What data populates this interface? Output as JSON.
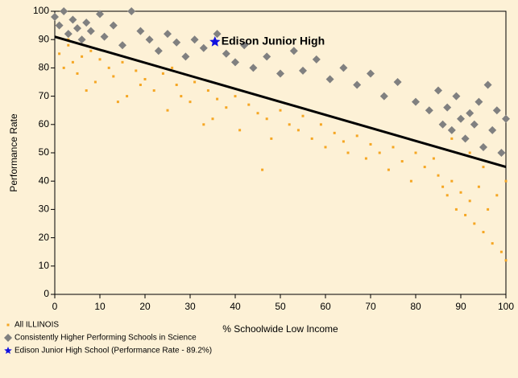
{
  "chart_data": {
    "type": "scatter",
    "xlabel": "% Schoolwide Low Income",
    "ylabel": "Performance Rate",
    "xlim": [
      0,
      100
    ],
    "ylim": [
      0,
      100
    ],
    "xticks": [
      0,
      10,
      20,
      30,
      40,
      50,
      60,
      70,
      80,
      90,
      100
    ],
    "yticks": [
      0,
      10,
      20,
      30,
      40,
      50,
      60,
      70,
      80,
      90,
      100
    ],
    "series": [
      {
        "name": "All ILLINOIS",
        "color": "#f5a623",
        "marker": "square",
        "x": [
          1,
          2,
          3,
          4,
          5,
          6,
          8,
          9,
          10,
          12,
          13,
          15,
          16,
          18,
          19,
          20,
          22,
          24,
          25,
          27,
          28,
          30,
          31,
          33,
          34,
          36,
          38,
          40,
          41,
          43,
          45,
          47,
          48,
          50,
          52,
          54,
          55,
          57,
          59,
          60,
          62,
          64,
          65,
          67,
          69,
          70,
          72,
          74,
          75,
          77,
          79,
          80,
          82,
          84,
          85,
          86,
          87,
          88,
          89,
          90,
          91,
          92,
          93,
          94,
          95,
          96,
          97,
          98,
          99,
          100,
          100,
          95,
          92,
          88,
          3,
          7,
          14,
          26,
          35,
          46
        ],
        "values": [
          85,
          80,
          88,
          82,
          78,
          84,
          86,
          75,
          83,
          80,
          77,
          82,
          70,
          79,
          74,
          76,
          72,
          78,
          65,
          74,
          70,
          68,
          75,
          60,
          72,
          69,
          66,
          70,
          58,
          67,
          64,
          62,
          55,
          65,
          60,
          58,
          63,
          55,
          60,
          52,
          57,
          54,
          50,
          56,
          48,
          53,
          50,
          44,
          52,
          47,
          40,
          50,
          45,
          48,
          42,
          38,
          35,
          40,
          30,
          36,
          28,
          33,
          25,
          38,
          22,
          30,
          18,
          35,
          15,
          40,
          12,
          45,
          50,
          55,
          90,
          72,
          68,
          80,
          62,
          44
        ]
      },
      {
        "name": "Consistently Higher Performing Schools in Science",
        "color": "#808080",
        "marker": "diamond",
        "x": [
          0,
          1,
          2,
          3,
          4,
          5,
          6,
          7,
          8,
          10,
          11,
          13,
          15,
          17,
          19,
          21,
          23,
          25,
          27,
          29,
          31,
          33,
          36,
          38,
          40,
          42,
          44,
          47,
          50,
          53,
          55,
          58,
          61,
          64,
          67,
          70,
          73,
          76,
          80,
          83,
          85,
          86,
          87,
          88,
          89,
          90,
          91,
          92,
          93,
          94,
          95,
          96,
          97,
          98,
          99,
          100
        ],
        "values": [
          98,
          95,
          100,
          92,
          97,
          94,
          90,
          96,
          93,
          99,
          91,
          95,
          88,
          100,
          93,
          90,
          86,
          92,
          89,
          84,
          90,
          87,
          92,
          85,
          82,
          88,
          80,
          84,
          78,
          86,
          79,
          83,
          76,
          80,
          74,
          78,
          70,
          75,
          68,
          65,
          72,
          60,
          66,
          58,
          70,
          62,
          55,
          64,
          60,
          68,
          52,
          74,
          58,
          65,
          50,
          62
        ]
      },
      {
        "name": "Edison Junior High School (Performance Rate - 89.2%)",
        "color": "#1010e0",
        "marker": "star",
        "x": [
          35.5
        ],
        "values": [
          89.2
        ],
        "annotation": "Edison Junior High"
      }
    ],
    "trend_line": {
      "x": [
        0,
        100
      ],
      "values": [
        91,
        45
      ],
      "color": "#000000"
    }
  }
}
